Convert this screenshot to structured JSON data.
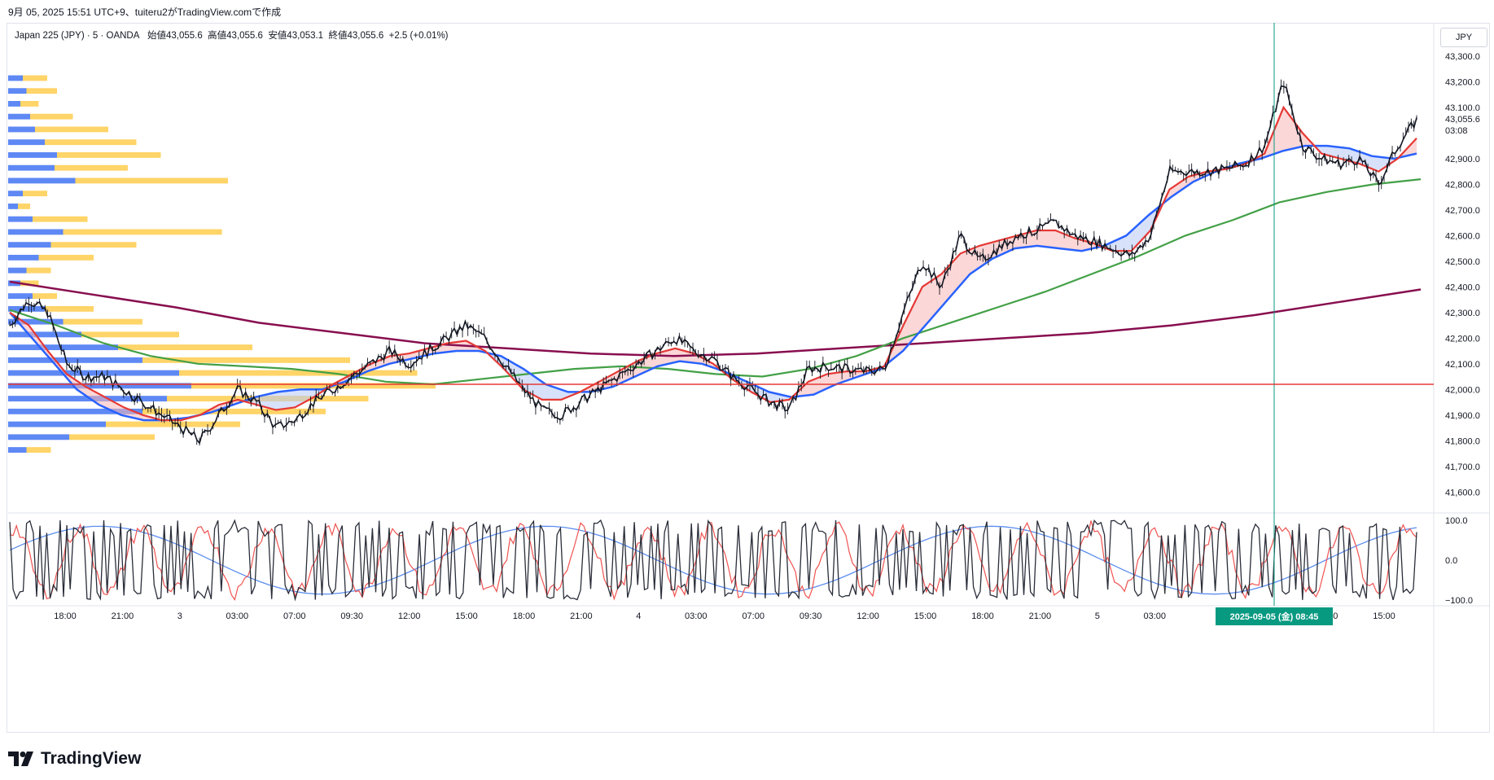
{
  "caption": "9月 05, 2025 15:51 UTC+9、tuiteru2がTradingView.comで作成",
  "legend": {
    "symbol": "Japan 225 (JPY) · 5 · OANDA",
    "open": "始値43,055.6",
    "high": "高値43,055.6",
    "low": "安値43,053.1",
    "close": "終値43,055.6",
    "change": "+2.5 (+0.01%)"
  },
  "currency": "JPY",
  "logo_text": "TradingView",
  "colors": {
    "candles": "#131722",
    "ema_fast": "#e53935",
    "ema_mid": "#2962ff",
    "sma_200": "#43a047",
    "sma_long": "#880e4f",
    "hline": "#e53935",
    "cursor": "#089981",
    "vp_up": "#4c7bf3",
    "vp_down": "#ffcc4d",
    "stoch_k": "#2a2e39",
    "stoch_d": "#ef5350",
    "rsi_slow": "#5b8def"
  },
  "chart_data": [
    {
      "type": "line",
      "title": "",
      "y_axis": {
        "ticks": [
          "43,300.0",
          "43,200.0",
          "43,100.0",
          "42,900.0",
          "42,800.0",
          "42,700.0",
          "42,600.0",
          "42,500.0",
          "42,400.0",
          "42,300.0",
          "42,200.0",
          "42,100.0",
          "42,000.0",
          "41,900.0",
          "41,800.0",
          "41,700.0",
          "41,600.0"
        ],
        "range": [
          41550,
          43360
        ]
      },
      "x_axis": {
        "ticks": [
          "18:00",
          "21:00",
          "3",
          "03:00",
          "07:00",
          "09:30",
          "12:00",
          "15:00",
          "18:00",
          "21:00",
          "4",
          "03:00",
          "07:00",
          "09:30",
          "12:00",
          "15:00",
          "18:00",
          "21:00",
          "5",
          "03:00",
          "12:00",
          "15:00"
        ],
        "cursor_label": "2025-09-05 (金)   08:45"
      },
      "last_price": "43,055.6",
      "countdown": "03:08",
      "horizontal_level": 42020,
      "series": [
        {
          "key": "close",
          "values": [
            42250,
            42350,
            42300,
            42100,
            42050,
            42050,
            42000,
            41950,
            41900,
            41850,
            41800,
            41900,
            42000,
            41950,
            41850,
            41880,
            41950,
            42000,
            42050,
            42100,
            42150,
            42100,
            42150,
            42200,
            42250,
            42200,
            42100,
            42000,
            41920,
            41900,
            41950,
            42000,
            42050,
            42100,
            42150,
            42200,
            42150,
            42120,
            42050,
            42000,
            41950,
            41920,
            42080,
            42090,
            42080,
            42070,
            42080,
            42300,
            42500,
            42400,
            42600,
            42500,
            42550,
            42600,
            42620,
            42650,
            42600,
            42580,
            42550,
            42520,
            42600,
            42850,
            42850,
            42850,
            42860,
            42880,
            42950,
            43200,
            42950,
            42900,
            42880,
            42900,
            42800,
            42950,
            43050
          ]
        },
        {
          "key": "ema_fast",
          "values": [
            42300,
            42250,
            42150,
            42060,
            42010,
            41970,
            41930,
            41900,
            41880,
            41880,
            41900,
            41940,
            41960,
            41940,
            41920,
            41930,
            41970,
            42020,
            42060,
            42100,
            42130,
            42140,
            42160,
            42180,
            42190,
            42150,
            42080,
            42000,
            41960,
            41960,
            41990,
            42030,
            42070,
            42110,
            42140,
            42160,
            42140,
            42100,
            42040,
            41990,
            41950,
            41960,
            42030,
            42060,
            42070,
            42070,
            42090,
            42250,
            42400,
            42450,
            42530,
            42560,
            42580,
            42600,
            42620,
            42620,
            42590,
            42570,
            42540,
            42540,
            42620,
            42780,
            42830,
            42850,
            42860,
            42880,
            42920,
            43100,
            43000,
            42920,
            42900,
            42880,
            42850,
            42900,
            42980
          ]
        },
        {
          "key": "ema_mid",
          "values": [
            42300,
            42200,
            42100,
            42000,
            41940,
            41900,
            41880,
            41880,
            41890,
            41910,
            41940,
            41970,
            41990,
            42000,
            42000,
            42030,
            42070,
            42100,
            42120,
            42140,
            42150,
            42150,
            42130,
            42080,
            42020,
            41990,
            41990,
            42010,
            42050,
            42090,
            42110,
            42100,
            42070,
            42030,
            41990,
            41970,
            41980,
            42020,
            42050,
            42080,
            42150,
            42250,
            42350,
            42450,
            42510,
            42550,
            42560,
            42550,
            42540,
            42560,
            42600,
            42680,
            42750,
            42810,
            42850,
            42880,
            42900,
            42930,
            42950,
            42950,
            42940,
            42910,
            42900,
            42920
          ]
        },
        {
          "key": "sma_200",
          "values": [
            42310,
            42250,
            42180,
            42130,
            42100,
            42090,
            42080,
            42060,
            42030,
            42020,
            42040,
            42060,
            42080,
            42090,
            42080,
            42060,
            42050,
            42080,
            42130,
            42200,
            42260,
            42320,
            42380,
            42450,
            42520,
            42600,
            42660,
            42730,
            42770,
            42800,
            42820
          ]
        },
        {
          "key": "sma_long",
          "values": [
            42420,
            42370,
            42320,
            42260,
            42220,
            42180,
            42160,
            42140,
            42130,
            42140,
            42160,
            42180,
            42200,
            42220,
            42250,
            42290,
            42340,
            42390
          ]
        }
      ],
      "volume_profile": {
        "price_levels": [
          43200,
          43150,
          43100,
          43050,
          43000,
          42950,
          42900,
          42850,
          42800,
          42750,
          42700,
          42650,
          42600,
          42550,
          42500,
          42450,
          42400,
          42350,
          42300,
          42250,
          42200,
          42150,
          42100,
          42050,
          42000,
          41950,
          41900,
          41850,
          41800,
          41750
        ],
        "up_volume": [
          12,
          15,
          10,
          18,
          22,
          30,
          40,
          38,
          55,
          12,
          8,
          20,
          45,
          35,
          25,
          15,
          10,
          20,
          30,
          45,
          60,
          90,
          110,
          140,
          150,
          130,
          110,
          80,
          50,
          15
        ],
        "down_volume": [
          20,
          25,
          15,
          35,
          60,
          75,
          85,
          60,
          125,
          20,
          10,
          45,
          130,
          70,
          45,
          20,
          15,
          20,
          40,
          65,
          80,
          110,
          170,
          195,
          200,
          165,
          150,
          110,
          70,
          20
        ]
      }
    },
    {
      "type": "line",
      "title": "",
      "y_axis": {
        "ticks": [
          "100.0",
          "0.0",
          "−100.0"
        ],
        "range": [
          -110,
          110
        ]
      },
      "series": [
        {
          "key": "stoch_k"
        },
        {
          "key": "stoch_d"
        },
        {
          "key": "rsi_slow"
        }
      ]
    }
  ]
}
